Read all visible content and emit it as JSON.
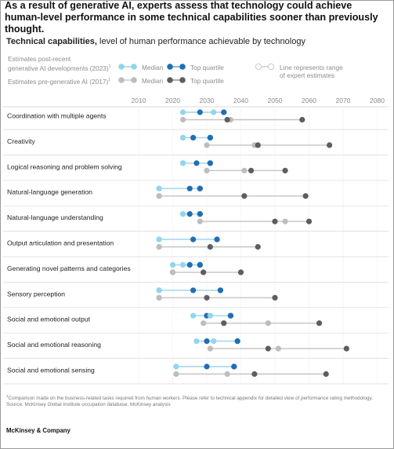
{
  "headline": "As a result of generative AI, experts assess that technology could achieve human-level performance in some technical capabilities sooner than previously thought.",
  "subtitle_bold": "Technical capabilities,",
  "subtitle_rest": " level of human performance achievable by technology",
  "legend": {
    "post_label_1": "Estimates post-recent",
    "post_label_2": "generative AI developments (2023)",
    "post_sup": "1",
    "pre_label": "Estimates pre-generative AI (2017)",
    "pre_sup": "1",
    "median": "Median",
    "top_quartile": "Top quartile",
    "range_note_1": "Line represents range",
    "range_note_2": "of expert estimates"
  },
  "colors": {
    "post_median": "#8fd6ee",
    "post_top": "#1f6fb5",
    "pre_median": "#bdbdbd",
    "pre_top": "#5e5e5e",
    "grid": "#d9d9d9"
  },
  "chart_data": {
    "type": "dot-range",
    "x_ticks": [
      2010,
      2020,
      2030,
      2040,
      2050,
      2060,
      2070,
      2080
    ],
    "xlim": [
      2010,
      2080
    ],
    "series": [
      {
        "name": "Estimates post-recent generative AI developments (2023)",
        "key": "post"
      },
      {
        "name": "Estimates pre-generative AI (2017)",
        "key": "pre"
      }
    ],
    "rows": [
      {
        "label": "Coordination with multiple agents",
        "post": {
          "start": 2023,
          "median": 2032,
          "top": 2035,
          "end": 2035,
          "inner": [
            2028
          ]
        },
        "pre": {
          "start": 2023,
          "median": 2037,
          "top": 2036,
          "end": 2058,
          "inner": []
        }
      },
      {
        "label": "Creativity",
        "post": {
          "start": 2023,
          "median": 2023,
          "top": 2031,
          "end": 2031,
          "inner": [
            2026
          ]
        },
        "pre": {
          "start": 2030,
          "median": 2044,
          "top": 2045,
          "end": 2066,
          "inner": []
        }
      },
      {
        "label": "Logical reasoning and problem solving",
        "post": {
          "start": 2023,
          "median": 2023,
          "top": 2031,
          "end": 2031,
          "inner": [
            2027
          ]
        },
        "pre": {
          "start": 2030,
          "median": 2041,
          "top": 2043,
          "end": 2053,
          "inner": []
        }
      },
      {
        "label": "Natural-language generation",
        "post": {
          "start": 2016,
          "median": 2016,
          "top": 2028,
          "end": 2028,
          "inner": [
            2025
          ]
        },
        "pre": {
          "start": 2016,
          "median": 2016,
          "top": 2041,
          "end": 2059,
          "inner": []
        }
      },
      {
        "label": "Natural-language understanding",
        "post": {
          "start": 2023,
          "median": 2023,
          "top": 2028,
          "end": 2028,
          "inner": [
            2025
          ]
        },
        "pre": {
          "start": 2028,
          "median": 2053,
          "top": 2050,
          "end": 2060,
          "inner": []
        }
      },
      {
        "label": "Output articulation and presentation",
        "post": {
          "start": 2016,
          "median": 2016,
          "top": 2033,
          "end": 2033,
          "inner": [
            2026
          ]
        },
        "pre": {
          "start": 2016,
          "median": 2016,
          "top": 2031,
          "end": 2045,
          "inner": []
        }
      },
      {
        "label": "Generating novel patterns and categories",
        "post": {
          "start": 2020,
          "median": 2023,
          "top": 2028,
          "end": 2028,
          "inner": [
            2025
          ]
        },
        "pre": {
          "start": 2020,
          "median": 2020,
          "top": 2029,
          "end": 2040,
          "inner": []
        }
      },
      {
        "label": "Sensory perception",
        "post": {
          "start": 2016,
          "median": 2016,
          "top": 2034,
          "end": 2034,
          "inner": [
            2026
          ]
        },
        "pre": {
          "start": 2016,
          "median": 2016,
          "top": 2030,
          "end": 2050,
          "inner": []
        }
      },
      {
        "label": "Social and emotional output",
        "post": {
          "start": 2026,
          "median": 2031,
          "top": 2037,
          "end": 2037,
          "inner": [
            2030
          ]
        },
        "pre": {
          "start": 2029,
          "median": 2048,
          "top": 2035,
          "end": 2063,
          "inner": []
        }
      },
      {
        "label": "Social and emotional reasoning",
        "post": {
          "start": 2027,
          "median": 2032,
          "top": 2039,
          "end": 2039,
          "inner": [
            2030
          ]
        },
        "pre": {
          "start": 2031,
          "median": 2051,
          "top": 2048,
          "end": 2071,
          "inner": []
        }
      },
      {
        "label": "Social and emotional sensing",
        "post": {
          "start": 2021,
          "median": 2021,
          "top": 2038,
          "end": 2038,
          "inner": [
            2030
          ]
        },
        "pre": {
          "start": 2021,
          "median": 2036,
          "top": 2044,
          "end": 2065,
          "inner": []
        }
      }
    ]
  },
  "footnote_1": "Comparison made on the business-related tasks required from human workers. Please refer to technical appendix for detailed view of performance rating methodology.",
  "footnote_sup": "1",
  "source": "Source: McKinsey Global Institute occupation database; McKinsey analysis",
  "brand": "McKinsey & Company"
}
